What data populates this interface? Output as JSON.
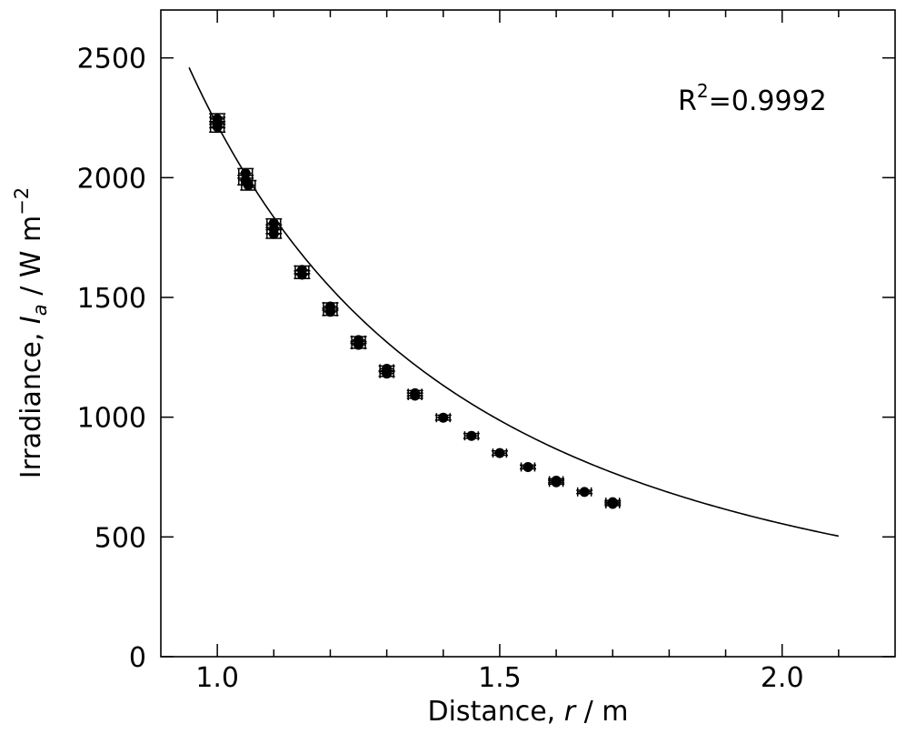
{
  "chart_data": {
    "type": "scatter",
    "title": "",
    "xlabel": {
      "prefix": "Distance, ",
      "var": "r",
      "suffix": " / m"
    },
    "ylabel": {
      "prefix": "Irradiance, ",
      "var": "I",
      "sub": "a",
      "suffix": " / W m",
      "sup": "−2"
    },
    "xlim": [
      0.9,
      2.2
    ],
    "ylim": [
      0,
      2700
    ],
    "xticks_major": [
      1.0,
      1.5,
      2.0
    ],
    "xtick_labels": [
      "1.0",
      "1.5",
      "2.0"
    ],
    "xticks_minor": [
      1.1,
      1.2,
      1.3,
      1.4,
      1.6,
      1.7,
      1.8,
      1.9,
      2.1
    ],
    "yticks": [
      0,
      500,
      1000,
      1500,
      2000,
      2500
    ],
    "ytick_labels": [
      "0",
      "500",
      "1000",
      "1500",
      "2000",
      "2500"
    ],
    "grid": false,
    "annotation": {
      "base": "R",
      "sup": "2",
      "rest": "=0.9992"
    },
    "points": [
      {
        "x": 1.0,
        "y": 2245,
        "yerr": 22,
        "xerr": 0.012
      },
      {
        "x": 1.0,
        "y": 2230,
        "yerr": 22,
        "xerr": 0.012
      },
      {
        "x": 1.0,
        "y": 2212,
        "yerr": 22,
        "xerr": 0.012
      },
      {
        "x": 1.05,
        "y": 2018,
        "yerr": 20,
        "xerr": 0.012
      },
      {
        "x": 1.05,
        "y": 1990,
        "yerr": 20,
        "xerr": 0.012
      },
      {
        "x": 1.055,
        "y": 1968,
        "yerr": 20,
        "xerr": 0.012
      },
      {
        "x": 1.1,
        "y": 1810,
        "yerr": 18,
        "xerr": 0.012
      },
      {
        "x": 1.1,
        "y": 1785,
        "yerr": 18,
        "xerr": 0.012
      },
      {
        "x": 1.1,
        "y": 1765,
        "yerr": 18,
        "xerr": 0.012
      },
      {
        "x": 1.15,
        "y": 1615,
        "yerr": 16,
        "xerr": 0.012
      },
      {
        "x": 1.15,
        "y": 1595,
        "yerr": 16,
        "xerr": 0.012
      },
      {
        "x": 1.2,
        "y": 1462,
        "yerr": 15,
        "xerr": 0.012
      },
      {
        "x": 1.2,
        "y": 1440,
        "yerr": 15,
        "xerr": 0.012
      },
      {
        "x": 1.25,
        "y": 1322,
        "yerr": 14,
        "xerr": 0.012
      },
      {
        "x": 1.25,
        "y": 1302,
        "yerr": 14,
        "xerr": 0.012
      },
      {
        "x": 1.3,
        "y": 1202,
        "yerr": 12,
        "xerr": 0.012
      },
      {
        "x": 1.3,
        "y": 1182,
        "yerr": 12,
        "xerr": 0.012
      },
      {
        "x": 1.35,
        "y": 1100,
        "yerr": 11,
        "xerr": 0.012
      },
      {
        "x": 1.35,
        "y": 1090,
        "yerr": 11,
        "xerr": 0.012
      },
      {
        "x": 1.4,
        "y": 998,
        "yerr": 10,
        "xerr": 0.012
      },
      {
        "x": 1.45,
        "y": 922,
        "yerr": 10,
        "xerr": 0.012
      },
      {
        "x": 1.5,
        "y": 850,
        "yerr": 9,
        "xerr": 0.012
      },
      {
        "x": 1.55,
        "y": 792,
        "yerr": 8,
        "xerr": 0.012
      },
      {
        "x": 1.6,
        "y": 735,
        "yerr": 8,
        "xerr": 0.012
      },
      {
        "x": 1.6,
        "y": 728,
        "yerr": 8,
        "xerr": 0.012
      },
      {
        "x": 1.65,
        "y": 688,
        "yerr": 7,
        "xerr": 0.012
      },
      {
        "x": 1.7,
        "y": 645,
        "yerr": 7,
        "xerr": 0.012
      },
      {
        "x": 1.7,
        "y": 638,
        "yerr": 7,
        "xerr": 0.012
      }
    ],
    "fit_curve": {
      "model": "y = k / x^2",
      "k": 2220,
      "x_range": [
        0.95,
        2.1
      ]
    },
    "colors": {
      "points": "#000000",
      "fit": "#000000",
      "frame": "#000000"
    }
  }
}
